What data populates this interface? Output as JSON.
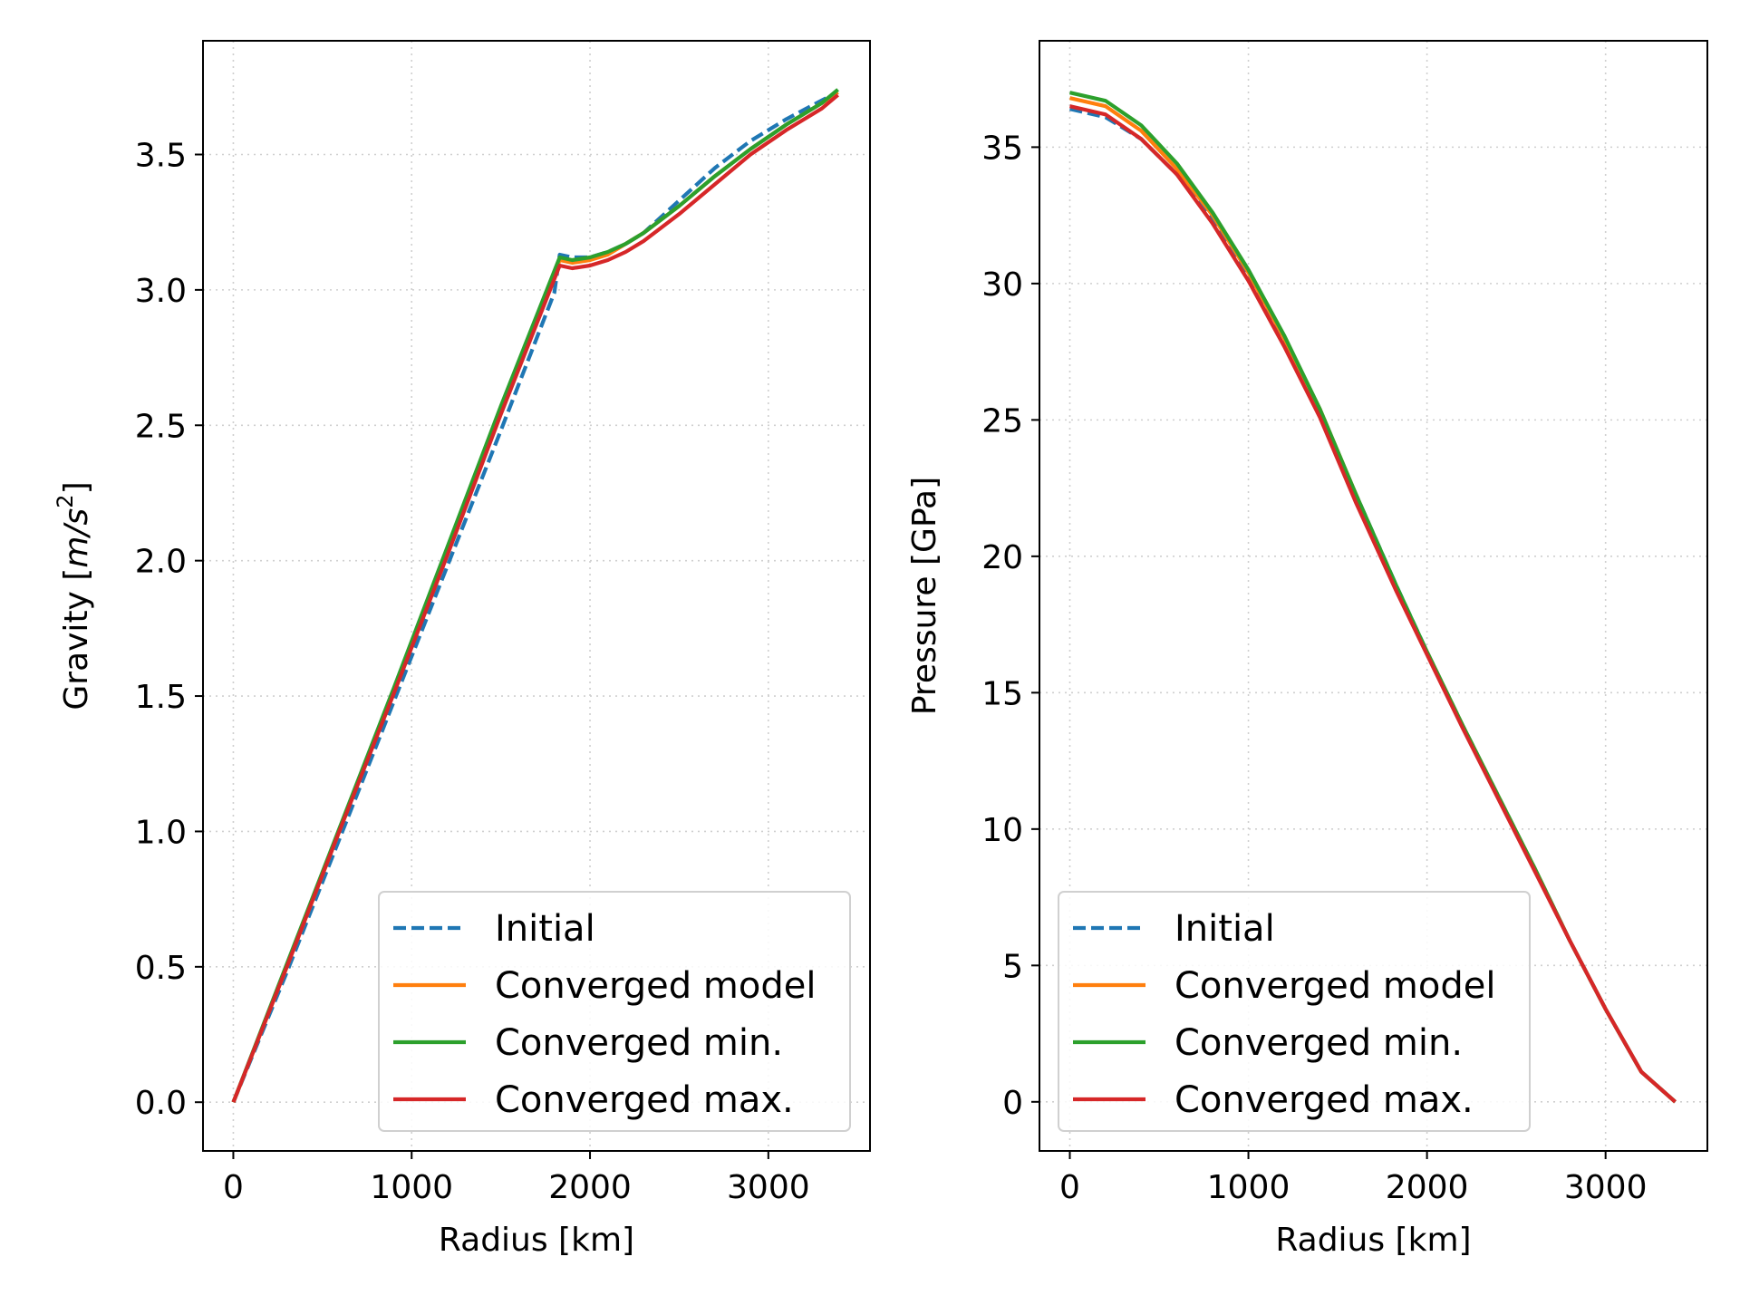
{
  "chart_data": [
    {
      "type": "line",
      "xlabel": "Radius [km]",
      "ylabel_prefix": "Gravity [",
      "ylabel_math": "m/s",
      "ylabel_sup": "2",
      "ylabel_suffix": "]",
      "xlim": [
        -170,
        3570
      ],
      "ylim": [
        -0.18,
        3.92
      ],
      "xticks": [
        0,
        1000,
        2000,
        3000
      ],
      "xtick_labels": [
        "0",
        "1000",
        "2000",
        "3000"
      ],
      "yticks": [
        0.0,
        0.5,
        1.0,
        1.5,
        2.0,
        2.5,
        3.0,
        3.5
      ],
      "ytick_labels": [
        "0.0",
        "0.5",
        "1.0",
        "1.5",
        "2.0",
        "2.5",
        "3.0",
        "3.5"
      ],
      "grid": true,
      "legend_position": "lower-right",
      "series": [
        {
          "name": "Initial",
          "color": "#1f77b4",
          "dashed": true,
          "x": [
            0,
            300,
            600,
            900,
            1200,
            1500,
            1800,
            1830,
            1900,
            2000,
            2100,
            2200,
            2300,
            2500,
            2700,
            2900,
            3100,
            3300,
            3390
          ],
          "y": [
            0,
            0.48,
            0.98,
            1.48,
            1.98,
            2.48,
            2.99,
            3.13,
            3.12,
            3.12,
            3.14,
            3.17,
            3.21,
            3.33,
            3.45,
            3.55,
            3.63,
            3.7,
            3.73
          ]
        },
        {
          "name": "Converged model",
          "color": "#ff7f0e",
          "dashed": false,
          "x": [
            0,
            300,
            600,
            900,
            1200,
            1500,
            1830,
            1900,
            2000,
            2100,
            2200,
            2300,
            2500,
            2700,
            2900,
            3100,
            3300,
            3390
          ],
          "y": [
            0,
            0.5,
            1.01,
            1.52,
            2.03,
            2.55,
            3.11,
            3.1,
            3.11,
            3.13,
            3.17,
            3.21,
            3.31,
            3.42,
            3.52,
            3.61,
            3.69,
            3.73
          ]
        },
        {
          "name": "Converged min.",
          "color": "#2ca02c",
          "dashed": false,
          "x": [
            0,
            300,
            600,
            900,
            1200,
            1500,
            1830,
            1900,
            2000,
            2100,
            2200,
            2300,
            2500,
            2700,
            2900,
            3100,
            3300,
            3390
          ],
          "y": [
            0,
            0.51,
            1.02,
            1.53,
            2.05,
            2.57,
            3.12,
            3.11,
            3.12,
            3.14,
            3.17,
            3.21,
            3.31,
            3.42,
            3.52,
            3.61,
            3.69,
            3.74
          ]
        },
        {
          "name": "Converged max.",
          "color": "#d62728",
          "dashed": false,
          "x": [
            0,
            300,
            600,
            900,
            1200,
            1500,
            1830,
            1900,
            2000,
            2100,
            2200,
            2300,
            2500,
            2700,
            2900,
            3100,
            3300,
            3390
          ],
          "y": [
            0,
            0.5,
            1.01,
            1.51,
            2.02,
            2.54,
            3.09,
            3.08,
            3.09,
            3.11,
            3.14,
            3.18,
            3.28,
            3.39,
            3.5,
            3.59,
            3.67,
            3.72
          ]
        }
      ]
    },
    {
      "type": "line",
      "xlabel": "Radius [km]",
      "ylabel": "Pressure [GPa]",
      "xlim": [
        -170,
        3570
      ],
      "ylim": [
        -1.8,
        38.9
      ],
      "xticks": [
        0,
        1000,
        2000,
        3000
      ],
      "xtick_labels": [
        "0",
        "1000",
        "2000",
        "3000"
      ],
      "yticks": [
        0,
        5,
        10,
        15,
        20,
        25,
        30,
        35
      ],
      "ytick_labels": [
        "0",
        "5",
        "10",
        "15",
        "20",
        "25",
        "30",
        "35"
      ],
      "grid": true,
      "legend_position": "lower-left",
      "series": [
        {
          "name": "Initial",
          "color": "#1f77b4",
          "dashed": true,
          "x": [
            0,
            200,
            400,
            600,
            800,
            1000,
            1200,
            1400,
            1600,
            1830,
            2000,
            2200,
            2400,
            2600,
            2800,
            3000,
            3200,
            3390
          ],
          "y": [
            36.4,
            36.1,
            35.3,
            34.0,
            32.3,
            30.2,
            27.9,
            25.3,
            22.3,
            18.9,
            16.5,
            13.8,
            11.2,
            8.6,
            5.9,
            3.4,
            1.1,
            0
          ]
        },
        {
          "name": "Converged model",
          "color": "#ff7f0e",
          "dashed": false,
          "x": [
            0,
            200,
            400,
            600,
            800,
            1000,
            1200,
            1400,
            1600,
            1830,
            2000,
            2200,
            2400,
            2600,
            2800,
            3000,
            3200,
            3390
          ],
          "y": [
            36.8,
            36.5,
            35.6,
            34.2,
            32.5,
            30.4,
            28.0,
            25.4,
            22.3,
            18.8,
            16.5,
            13.8,
            11.2,
            8.6,
            5.9,
            3.4,
            1.1,
            0
          ]
        },
        {
          "name": "Converged min.",
          "color": "#2ca02c",
          "dashed": false,
          "x": [
            0,
            200,
            400,
            600,
            800,
            1000,
            1200,
            1400,
            1600,
            1830,
            2000,
            2200,
            2400,
            2600,
            2800,
            3000,
            3200,
            3390
          ],
          "y": [
            37.0,
            36.7,
            35.8,
            34.4,
            32.6,
            30.5,
            28.1,
            25.4,
            22.3,
            18.9,
            16.5,
            13.8,
            11.2,
            8.6,
            5.9,
            3.4,
            1.1,
            0
          ]
        },
        {
          "name": "Converged max.",
          "color": "#d62728",
          "dashed": false,
          "x": [
            0,
            200,
            400,
            600,
            800,
            1000,
            1200,
            1400,
            1600,
            1830,
            2000,
            2200,
            2400,
            2600,
            2800,
            3000,
            3200,
            3390
          ],
          "y": [
            36.5,
            36.2,
            35.3,
            34.0,
            32.2,
            30.1,
            27.7,
            25.1,
            22.0,
            18.7,
            16.4,
            13.7,
            11.1,
            8.5,
            5.9,
            3.4,
            1.1,
            0
          ]
        }
      ]
    }
  ]
}
